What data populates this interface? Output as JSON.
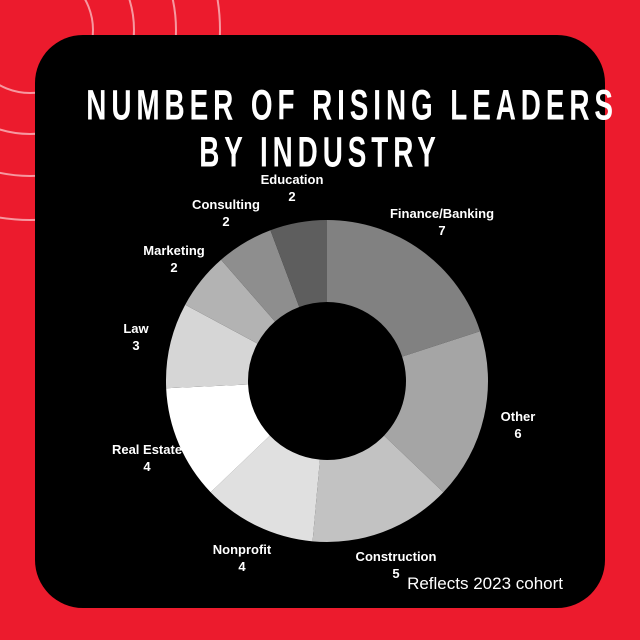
{
  "header": {
    "title_line1": "NUMBER OF RISING LEADERS",
    "title_line2": "BY INDUSTRY"
  },
  "footer": {
    "note": "Reflects 2023 cohort"
  },
  "colors": {
    "background_red": "#EC1B2D",
    "card_black": "#000000",
    "text_white": "#FFFFFF",
    "arc_line": "rgba(255,255,255,0.55)"
  },
  "chart_data": {
    "type": "pie",
    "subtype": "donut",
    "title": "Number of Rising Leaders by Industry",
    "total": 35,
    "start_angle_deg": 0,
    "direction": "clockwise",
    "legend_position": "none",
    "slices": [
      {
        "label": "Finance/Banking",
        "value": 7,
        "color": "#818181"
      },
      {
        "label": "Other",
        "value": 6,
        "color": "#A5A5A5"
      },
      {
        "label": "Construction",
        "value": 5,
        "color": "#C2C2C2"
      },
      {
        "label": "Nonprofit",
        "value": 4,
        "color": "#E0E0E0"
      },
      {
        "label": "Real Estate",
        "value": 4,
        "color": "#FFFFFF"
      },
      {
        "label": "Law",
        "value": 3,
        "color": "#D6D6D6"
      },
      {
        "label": "Marketing",
        "value": 2,
        "color": "#B3B3B3"
      },
      {
        "label": "Consulting",
        "value": 2,
        "color": "#8E8E8E"
      },
      {
        "label": "Education",
        "value": 2,
        "color": "#5E5E5E"
      }
    ]
  }
}
